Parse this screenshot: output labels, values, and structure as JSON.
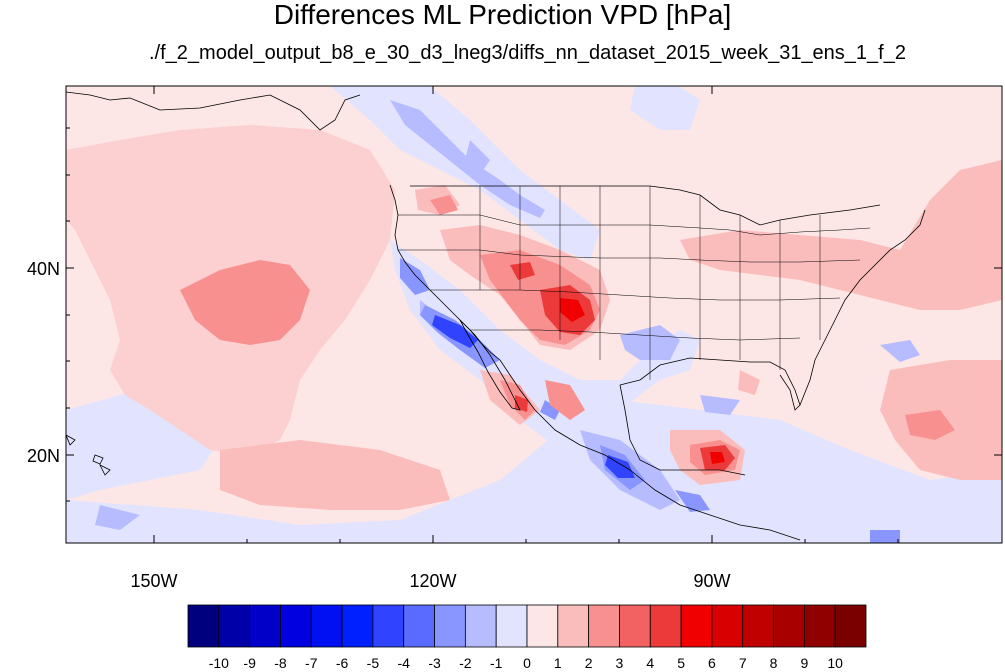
{
  "title": "Differences ML Prediction VPD [hPa]",
  "subtitle": "./f_2_model_output_b8_e_30_d3_lneg3/diffs_nn_dataset_2015_week_31_ens_1_f_2",
  "map": {
    "lon_labels": [
      "150W",
      "120W",
      "90W"
    ],
    "lat_labels": [
      "40N",
      "20N"
    ],
    "background_color": "#fde6e6"
  },
  "colorbar": {
    "labels": [
      "-10",
      "-9",
      "-8",
      "-7",
      "-6",
      "-5",
      "-4",
      "-3",
      "-2",
      "-1",
      "0",
      "1",
      "2",
      "3",
      "4",
      "5",
      "6",
      "7",
      "8",
      "9",
      "10"
    ],
    "colors": [
      "#00007f",
      "#0000a8",
      "#0000c8",
      "#0000e0",
      "#0010f0",
      "#0020ff",
      "#3044ff",
      "#5a6cff",
      "#8a96ff",
      "#b6bcff",
      "#e2e4ff",
      "#fde6e6",
      "#fbbcbc",
      "#f89090",
      "#f26262",
      "#ec3a3a",
      "#f00000",
      "#d80000",
      "#c00000",
      "#a80000",
      "#900000",
      "#7a0000"
    ]
  }
}
